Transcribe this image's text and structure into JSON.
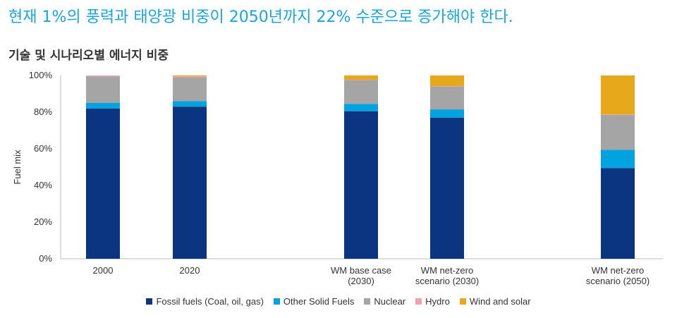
{
  "headline": "현재 1%의 풍력과 태양광 비중이 2050년까지 22% 수준으로 증가해야 한다.",
  "subtitle": "기술 및 시나리오별 에너지 비중",
  "chart_data": {
    "type": "bar",
    "stacked": true,
    "ylabel": "Fuel mix",
    "ylim": [
      0,
      100
    ],
    "yticks": [
      "0%",
      "20%",
      "40%",
      "60%",
      "80%",
      "100%"
    ],
    "categories": [
      [
        "2000"
      ],
      [
        "2020"
      ],
      [
        "WM base case",
        "(2030)"
      ],
      [
        "WM net-zero",
        "scenario (2030)"
      ],
      [
        "WM net-zero",
        "scenario (2050)"
      ]
    ],
    "series": [
      {
        "name": "Fossil fuels (Coal, oil, gas)",
        "color": "#0b3580",
        "values": [
          82,
          83,
          80.5,
          77,
          49.5
        ]
      },
      {
        "name": "Other Solid Fuels",
        "color": "#00a3e0",
        "values": [
          3,
          3,
          4,
          4.5,
          10
        ]
      },
      {
        "name": "Nuclear",
        "color": "#a5a5a5",
        "values": [
          14.5,
          13,
          13,
          12.5,
          19
        ]
      },
      {
        "name": "Hydro",
        "color": "#f2a0b4",
        "values": [
          0.5,
          0.5,
          0.2,
          0.2,
          0.2
        ]
      },
      {
        "name": "Wind and solar",
        "color": "#e8a81c",
        "values": [
          0,
          0.5,
          2.3,
          5.8,
          21.3
        ]
      }
    ],
    "grid": false,
    "legend_position": "bottom"
  }
}
